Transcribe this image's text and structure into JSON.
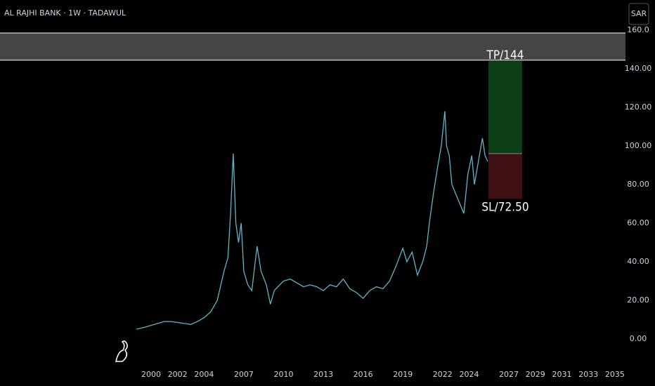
{
  "chart_data": {
    "type": "line",
    "title": "AL RAJHI BANK · 1W · TADAWUL",
    "currency": "SAR",
    "x": [
      1998.9,
      1999.5,
      2000,
      2000.5,
      2001,
      2001.5,
      2002,
      2002.5,
      2003,
      2003.5,
      2004,
      2004.5,
      2005,
      2005.5,
      2005.8,
      2006.0,
      2006.2,
      2006.4,
      2006.6,
      2006.8,
      2007,
      2007.3,
      2007.6,
      2008,
      2008.3,
      2008.7,
      2009,
      2009.3,
      2009.7,
      2010,
      2010.5,
      2011,
      2011.5,
      2012,
      2012.5,
      2013,
      2013.5,
      2014,
      2014.5,
      2015,
      2015.5,
      2016,
      2016.5,
      2017,
      2017.5,
      2018,
      2018.5,
      2019,
      2019.3,
      2019.7,
      2020.1,
      2020.5,
      2020.8,
      2021,
      2021.3,
      2021.6,
      2021.9,
      2022.17,
      2022.3,
      2022.5,
      2022.7,
      2023,
      2023.3,
      2023.6,
      2023.9,
      2024.2,
      2024.4,
      2024.7,
      2025,
      2025.2,
      2025.4
    ],
    "series": [
      {
        "color": "#5fb6c6",
        "values": [
          5,
          6,
          7,
          8,
          9,
          9,
          8.5,
          8,
          7.5,
          9,
          11,
          14,
          20,
          35,
          42,
          65,
          96,
          60,
          50,
          60,
          35,
          28,
          25,
          48,
          35,
          28,
          18,
          25,
          28,
          30,
          31,
          29,
          27,
          28,
          27,
          25,
          28,
          27,
          31,
          26,
          24,
          21,
          25,
          27,
          26,
          30,
          38,
          47,
          40,
          45,
          33,
          40,
          48,
          60,
          75,
          88,
          100,
          118,
          100,
          95,
          80,
          75,
          70,
          65,
          85,
          95,
          80,
          92,
          104,
          95,
          92
        ]
      }
    ],
    "xlim": [
      1988.6,
      2035.8
    ],
    "ylim": [
      -13.5,
      175.6
    ],
    "xticks": [
      2000,
      2002,
      2004,
      2007,
      2010,
      2013,
      2016,
      2019,
      2022,
      2024,
      2027,
      2029,
      2031,
      2033,
      2035
    ],
    "yticks": [
      {
        "value": 0,
        "label": "0.00"
      },
      {
        "value": 20,
        "label": "20.00"
      },
      {
        "value": 40,
        "label": "40.00"
      },
      {
        "value": 60,
        "label": "60.00"
      },
      {
        "value": 80,
        "label": "80.00"
      },
      {
        "value": 100,
        "label": "100.00"
      },
      {
        "value": 120,
        "label": "120.00"
      },
      {
        "value": 140,
        "label": "140.00"
      },
      {
        "value": 160,
        "label": "160.0"
      }
    ],
    "zone": [
      144.4,
      158.5
    ],
    "position": {
      "start": 2025.46,
      "end": 2028.0,
      "tp": 144,
      "tp_label": "TP/144",
      "entry": 96,
      "sl": 72.5,
      "sl_label": "SL/72.50",
      "profit_color": "#0d3f17",
      "loss_color": "#3f1014"
    }
  }
}
